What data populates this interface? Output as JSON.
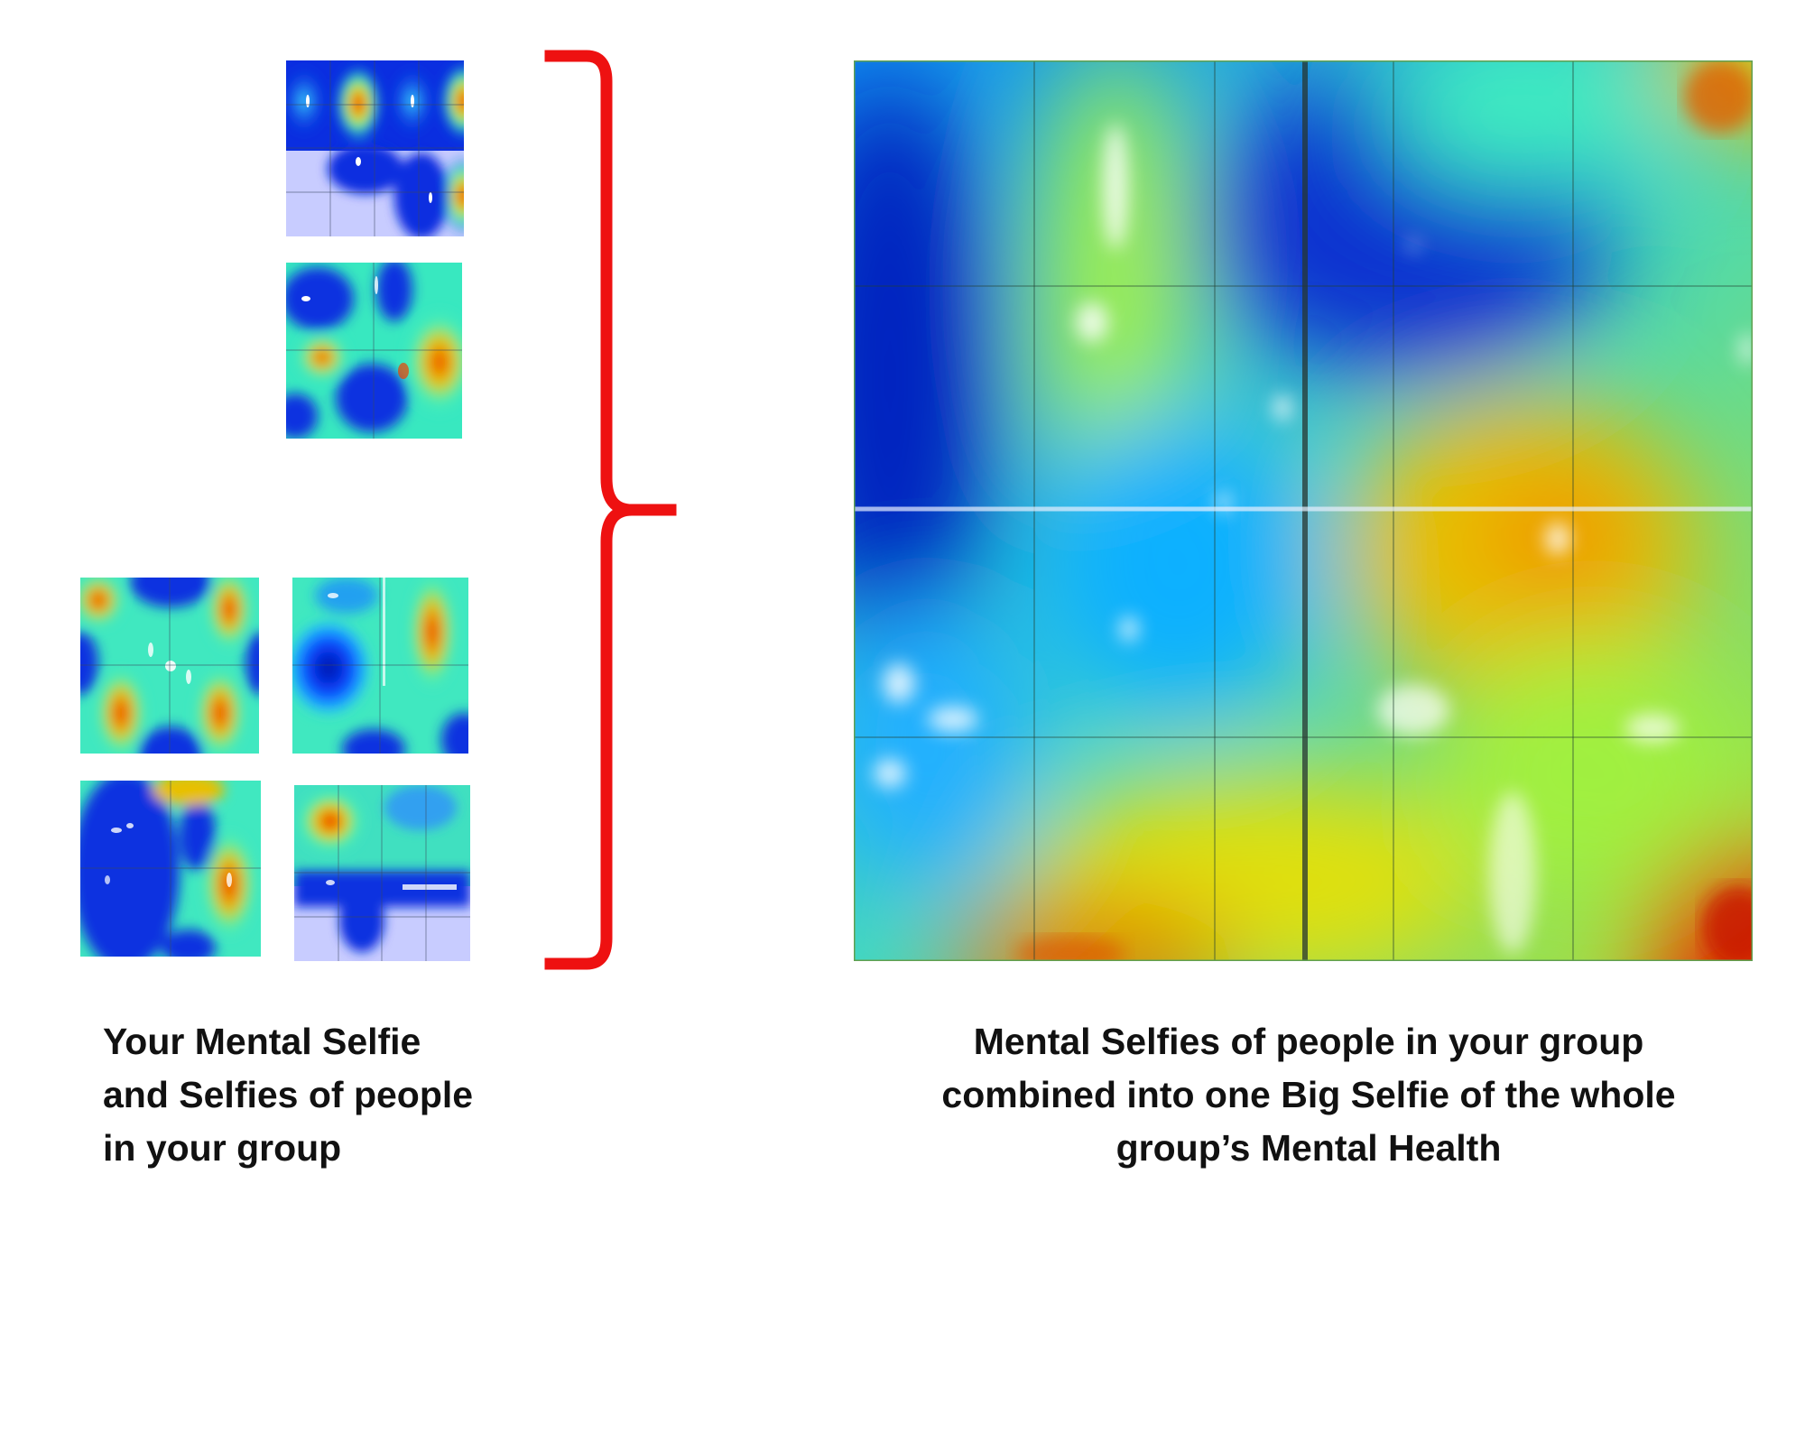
{
  "colors": {
    "bracket": "#ee1111",
    "background": "#ffffff",
    "caption_text": "#111111",
    "low": "#0018c8",
    "mid_low": "#00a0ff",
    "mid": "#3ff0b8",
    "mid_high": "#a8f040",
    "high": "#e8d800",
    "peak": "#f02800"
  },
  "captions": {
    "left": {
      "line1": "Your Mental Selfie",
      "line2": "and Selfies of people",
      "line3": "in your group"
    },
    "right": {
      "line1": "Mental Selfies of people in your group",
      "line2": "combined into one Big Selfie of the whole",
      "line3": "group’s Mental Health"
    }
  },
  "icons": {
    "bracket": "right-curly-brace-icon"
  }
}
